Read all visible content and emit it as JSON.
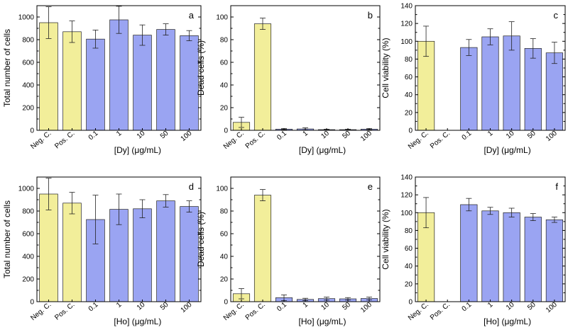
{
  "chart_data": [
    {
      "id": "a",
      "type": "bar",
      "panel_label": "a",
      "ylabel": "Total number of cells",
      "xlabel": "[Dy] (μg/mL)",
      "ylim": [
        0,
        1100
      ],
      "yticks": [
        0,
        200,
        400,
        600,
        800,
        1000
      ],
      "categories": [
        "Neg. C.",
        "Pos. C.",
        "0.1",
        "1",
        "10",
        "50",
        "100"
      ],
      "values": [
        950,
        870,
        805,
        975,
        840,
        890,
        835
      ],
      "errors": [
        140,
        95,
        80,
        120,
        90,
        50,
        45
      ],
      "colors": [
        "#f2ee9a",
        "#f2ee9a",
        "#9aa4f2",
        "#9aa4f2",
        "#9aa4f2",
        "#9aa4f2",
        "#9aa4f2"
      ]
    },
    {
      "id": "b",
      "type": "bar",
      "panel_label": "b",
      "ylabel": "Dead cells (%)",
      "xlabel": "[Dy] (μg/mL)",
      "ylim": [
        0,
        110
      ],
      "yticks": [
        0,
        20,
        40,
        60,
        80,
        100
      ],
      "categories": [
        "Neg. C.",
        "Pos. C.",
        "0.1",
        "1",
        "10",
        "50",
        "100"
      ],
      "values": [
        7,
        94,
        1,
        1.2,
        0.6,
        0.6,
        1
      ],
      "errors": [
        4.5,
        5,
        0.5,
        1,
        0.4,
        0.4,
        0.6
      ],
      "colors": [
        "#f2ee9a",
        "#f2ee9a",
        "#9aa4f2",
        "#9aa4f2",
        "#9aa4f2",
        "#9aa4f2",
        "#9aa4f2"
      ]
    },
    {
      "id": "c",
      "type": "bar",
      "panel_label": "c",
      "ylabel": "Cell viability (%)",
      "xlabel": "[Dy] (μg/mL)",
      "ylim": [
        0,
        140
      ],
      "yticks": [
        0,
        20,
        40,
        60,
        80,
        100,
        120,
        140
      ],
      "categories": [
        "Neg. C.",
        "Pos. C.",
        "0.1",
        "1",
        "10",
        "50",
        "100"
      ],
      "values": [
        100,
        0,
        93,
        105,
        106,
        92,
        87
      ],
      "errors": [
        17,
        0,
        9,
        9,
        16,
        11,
        12
      ],
      "colors": [
        "#f2ee9a",
        "#f2ee9a",
        "#9aa4f2",
        "#9aa4f2",
        "#9aa4f2",
        "#9aa4f2",
        "#9aa4f2"
      ]
    },
    {
      "id": "d",
      "type": "bar",
      "panel_label": "d",
      "ylabel": "Total number of cells",
      "xlabel": "[Ho] (μg/mL)",
      "ylim": [
        0,
        1100
      ],
      "yticks": [
        0,
        200,
        400,
        600,
        800,
        1000
      ],
      "categories": [
        "Neg. C.",
        "Pos. C.",
        "0.1",
        "1",
        "10",
        "50",
        "100"
      ],
      "values": [
        950,
        870,
        725,
        815,
        820,
        890,
        840
      ],
      "errors": [
        140,
        95,
        215,
        135,
        80,
        55,
        50
      ],
      "colors": [
        "#f2ee9a",
        "#f2ee9a",
        "#9aa4f2",
        "#9aa4f2",
        "#9aa4f2",
        "#9aa4f2",
        "#9aa4f2"
      ]
    },
    {
      "id": "e",
      "type": "bar",
      "panel_label": "e",
      "ylabel": "Dead cells (%)",
      "xlabel": "[Ho] (μg/mL)",
      "ylim": [
        0,
        110
      ],
      "yticks": [
        0,
        20,
        40,
        60,
        80,
        100
      ],
      "categories": [
        "Neg. C.",
        "Pos. C.",
        "0.1",
        "1",
        "10",
        "50",
        "100"
      ],
      "values": [
        7,
        94,
        3.5,
        2,
        2.7,
        2.5,
        2.8
      ],
      "errors": [
        4.5,
        5,
        2.5,
        1,
        1.3,
        1.1,
        1.2
      ],
      "colors": [
        "#f2ee9a",
        "#f2ee9a",
        "#9aa4f2",
        "#9aa4f2",
        "#9aa4f2",
        "#9aa4f2",
        "#9aa4f2"
      ]
    },
    {
      "id": "f",
      "type": "bar",
      "panel_label": "f",
      "ylabel": "Cell viability (%)",
      "xlabel": "[Ho] (μg/mL)",
      "ylim": [
        0,
        140
      ],
      "yticks": [
        0,
        20,
        40,
        60,
        80,
        100,
        120,
        140
      ],
      "categories": [
        "Neg. C.",
        "Pos. C.",
        "0.1",
        "1",
        "10",
        "50",
        "100"
      ],
      "values": [
        100,
        0,
        109,
        102,
        100,
        95,
        92
      ],
      "errors": [
        17,
        0,
        7,
        4,
        5,
        4,
        3
      ],
      "colors": [
        "#f2ee9a",
        "#f2ee9a",
        "#9aa4f2",
        "#9aa4f2",
        "#9aa4f2",
        "#9aa4f2",
        "#9aa4f2"
      ]
    }
  ]
}
